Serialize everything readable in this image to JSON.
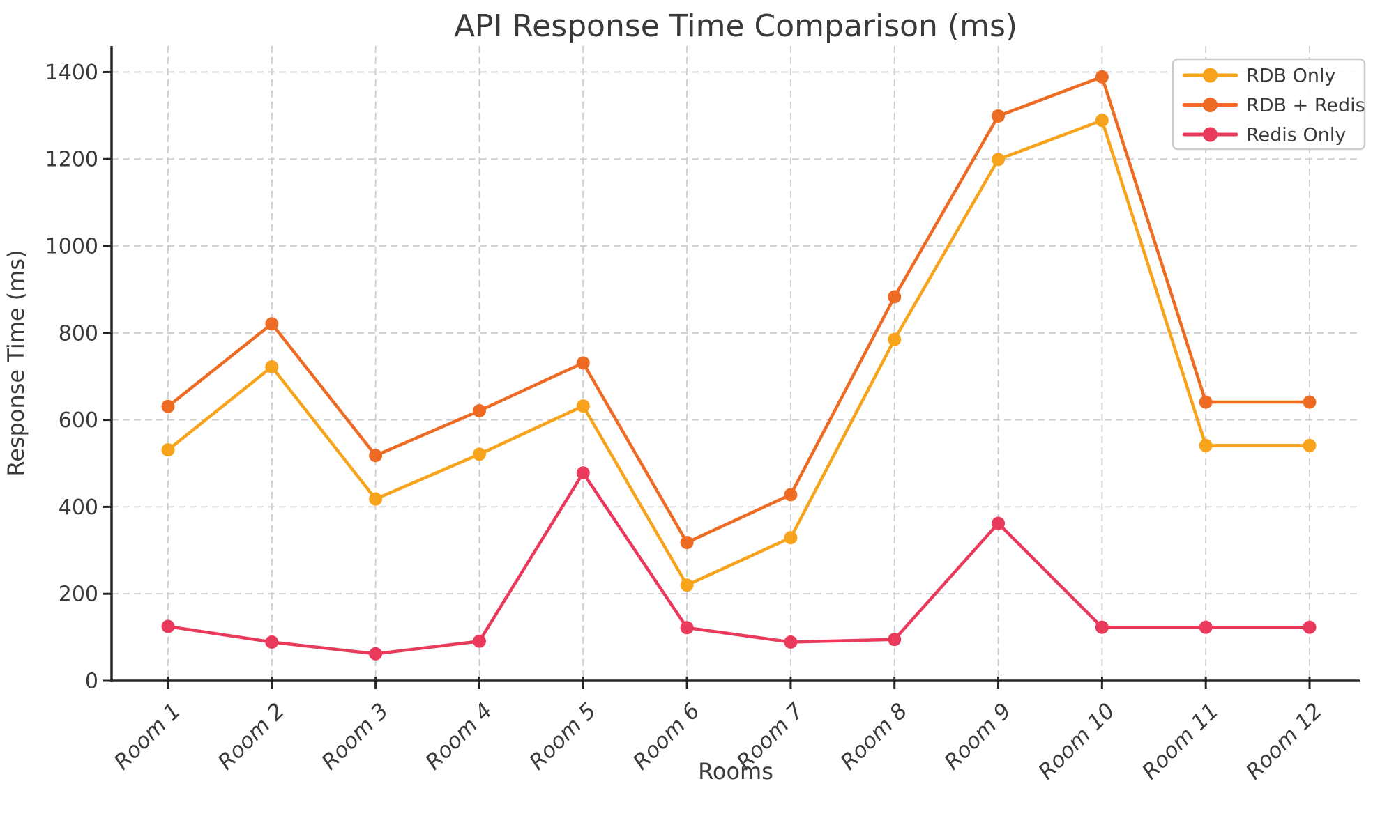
{
  "chart_data": {
    "type": "line",
    "title": "API Response Time Comparison (ms)",
    "xlabel": "Rooms",
    "ylabel": "Response Time (ms)",
    "categories": [
      "Room 1",
      "Room 2",
      "Room 3",
      "Room 4",
      "Room 5",
      "Room 6",
      "Room 7",
      "Room 8",
      "Room 9",
      "Room 10",
      "Room 11",
      "Room 12"
    ],
    "series": [
      {
        "name": "RDB Only",
        "color": "#F7A41C",
        "values": [
          531,
          722,
          418,
          521,
          632,
          220,
          329,
          785,
          1199,
          1289,
          541,
          541
        ]
      },
      {
        "name": "RDB + Redis",
        "color": "#EE6B24",
        "values": [
          631,
          821,
          518,
          621,
          731,
          318,
          428,
          883,
          1299,
          1389,
          641,
          641
        ]
      },
      {
        "name": "Redis Only",
        "color": "#E93A5C",
        "values": [
          125,
          89,
          62,
          91,
          478,
          122,
          89,
          95,
          362,
          123,
          123,
          123
        ]
      }
    ],
    "yticks": [
      0,
      200,
      400,
      600,
      800,
      1000,
      1200,
      1400
    ],
    "ylim": [
      0,
      1460
    ],
    "grid": true,
    "legend_position": "upper right",
    "colors": {
      "grid": "#cccccc",
      "spine": "#262626",
      "text": "#3a3a3a",
      "background": "#ffffff"
    }
  }
}
